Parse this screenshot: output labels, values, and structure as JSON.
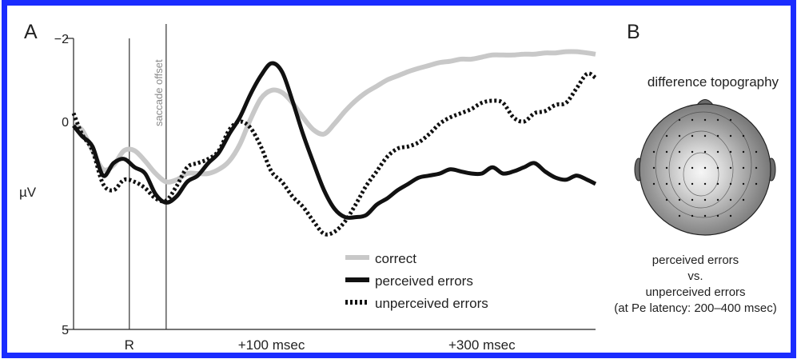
{
  "panels": {
    "a_label": "A",
    "b_label": "B"
  },
  "colors": {
    "border": "#1a2cff",
    "correct": "#c8c8c8",
    "perceived": "#111111",
    "unperceived": "#111111",
    "axis": "#222222"
  },
  "chart_data": [
    {
      "type": "line",
      "title": "",
      "xlabel": "",
      "ylabel": "µV",
      "y_inverted": true,
      "ylim": [
        -2,
        5
      ],
      "y_ticks": [
        {
          "value": -2,
          "label": "−2"
        },
        {
          "value": 0,
          "label": "0"
        },
        {
          "value": 5,
          "label": "5"
        }
      ],
      "x_unit": "msec relative to saccade offset",
      "xlim": [
        -88,
        408
      ],
      "x_ticks": [
        {
          "value": -35,
          "label": "R"
        },
        {
          "value": 100,
          "label": "+100 msec"
        },
        {
          "value": 300,
          "label": "+300 msec"
        }
      ],
      "markers": [
        {
          "x": -35,
          "label": ""
        },
        {
          "x": 0,
          "label": "saccade offset"
        }
      ],
      "legend_position": "bottom-right",
      "series": [
        {
          "name": "correct",
          "style": "solid-gray",
          "x": [
            -88,
            -80,
            -70,
            -60,
            -50,
            -40,
            -30,
            -20,
            -10,
            0,
            10,
            20,
            30,
            40,
            50,
            60,
            70,
            80,
            90,
            100,
            110,
            120,
            130,
            140,
            150,
            160,
            170,
            180,
            190,
            200,
            210,
            220,
            230,
            240,
            250,
            260,
            270,
            280,
            290,
            300,
            310,
            320,
            330,
            340,
            350,
            360,
            370,
            380,
            390,
            400,
            408
          ],
          "y": [
            0.1,
            0.2,
            0.7,
            1.15,
            1.05,
            0.7,
            0.7,
            0.95,
            1.25,
            1.45,
            1.4,
            1.25,
            1.25,
            1.25,
            1.15,
            0.95,
            0.55,
            -0.05,
            -0.55,
            -0.75,
            -0.7,
            -0.45,
            -0.1,
            0.2,
            0.3,
            0.05,
            -0.25,
            -0.5,
            -0.7,
            -0.85,
            -1.0,
            -1.1,
            -1.2,
            -1.28,
            -1.35,
            -1.42,
            -1.45,
            -1.5,
            -1.5,
            -1.55,
            -1.6,
            -1.6,
            -1.6,
            -1.62,
            -1.62,
            -1.65,
            -1.65,
            -1.68,
            -1.68,
            -1.65,
            -1.62
          ]
        },
        {
          "name": "perceived errors",
          "style": "solid-black",
          "x": [
            -88,
            -80,
            -70,
            -60,
            -50,
            -40,
            -30,
            -20,
            -10,
            0,
            10,
            20,
            30,
            40,
            50,
            60,
            70,
            80,
            90,
            100,
            110,
            120,
            130,
            140,
            150,
            160,
            170,
            180,
            190,
            200,
            210,
            220,
            230,
            240,
            250,
            260,
            270,
            280,
            290,
            300,
            310,
            320,
            330,
            340,
            350,
            360,
            370,
            380,
            390,
            400,
            408
          ],
          "y": [
            0.1,
            0.35,
            0.6,
            1.3,
            1.0,
            0.9,
            1.1,
            1.25,
            1.75,
            1.95,
            1.8,
            1.45,
            1.3,
            1.0,
            0.75,
            0.3,
            -0.1,
            -0.65,
            -1.1,
            -1.4,
            -1.2,
            -0.5,
            0.3,
            1.0,
            1.65,
            2.1,
            2.3,
            2.3,
            2.25,
            2.0,
            1.85,
            1.65,
            1.5,
            1.35,
            1.3,
            1.25,
            1.15,
            1.2,
            1.25,
            1.25,
            1.1,
            1.25,
            1.2,
            1.1,
            1.0,
            1.2,
            1.35,
            1.4,
            1.3,
            1.4,
            1.5
          ]
        },
        {
          "name": "unperceived errors",
          "style": "dotted-black",
          "x": [
            -88,
            -80,
            -70,
            -60,
            -50,
            -40,
            -30,
            -20,
            -10,
            0,
            10,
            20,
            30,
            40,
            50,
            60,
            70,
            80,
            90,
            100,
            110,
            120,
            130,
            140,
            150,
            160,
            170,
            180,
            190,
            200,
            210,
            220,
            230,
            240,
            250,
            260,
            270,
            280,
            290,
            300,
            310,
            320,
            330,
            340,
            350,
            360,
            370,
            380,
            390,
            400,
            408
          ],
          "y": [
            -0.2,
            0.3,
            0.7,
            1.5,
            1.65,
            1.4,
            1.45,
            1.6,
            1.85,
            1.9,
            1.55,
            1.1,
            1.0,
            0.9,
            0.7,
            0.2,
            0.0,
            0.15,
            0.6,
            1.2,
            1.45,
            1.8,
            2.05,
            2.4,
            2.7,
            2.65,
            2.4,
            2.0,
            1.55,
            1.2,
            0.85,
            0.65,
            0.6,
            0.5,
            0.3,
            0.05,
            -0.1,
            -0.2,
            -0.3,
            -0.45,
            -0.5,
            -0.45,
            -0.1,
            0.0,
            -0.2,
            -0.25,
            -0.4,
            -0.45,
            -0.8,
            -1.15,
            -1.05
          ]
        }
      ]
    }
  ],
  "topography": {
    "title": "difference topography",
    "caption_line1": "perceived errors",
    "caption_line2": "vs.",
    "caption_line3": "unperceived errors",
    "caption_line4": "(at Pe latency: 200–400 msec)"
  }
}
